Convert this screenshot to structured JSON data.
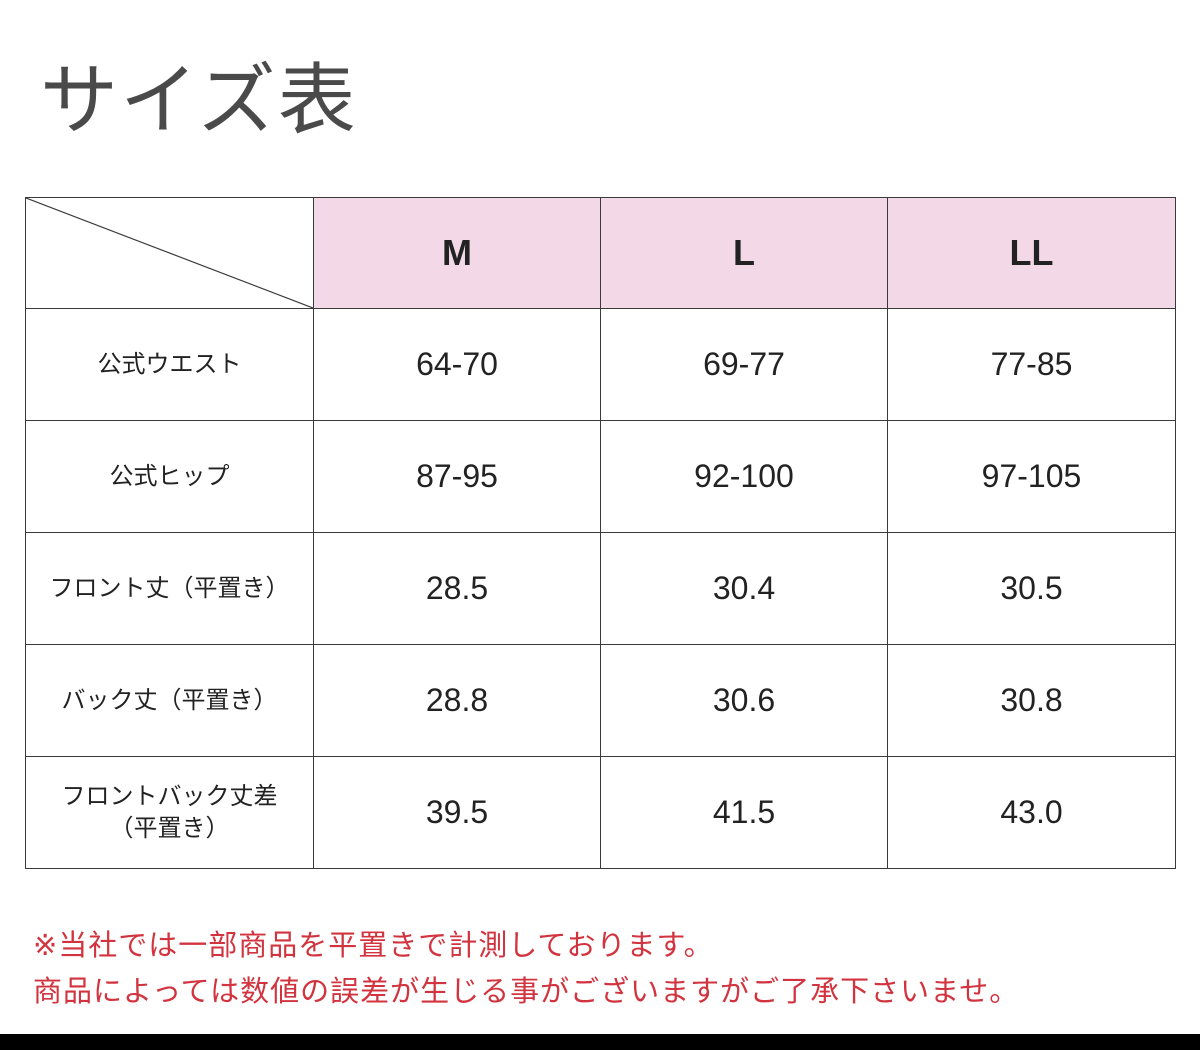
{
  "page": {
    "title": "サイズ表"
  },
  "table": {
    "sizes": [
      "M",
      "L",
      "LL"
    ],
    "rows": [
      {
        "label": [
          "公式ウエスト"
        ],
        "values": [
          "64-70",
          "69-77",
          "77-85"
        ]
      },
      {
        "label": [
          "公式ヒップ"
        ],
        "values": [
          "87-95",
          "92-100",
          "97-105"
        ]
      },
      {
        "label": [
          "フロント丈（平置き）"
        ],
        "values": [
          "28.5",
          "30.4",
          "30.5"
        ]
      },
      {
        "label": [
          "バック丈（平置き）"
        ],
        "values": [
          "28.8",
          "30.6",
          "30.8"
        ]
      },
      {
        "label": [
          "フロントバック丈差",
          "（平置き）"
        ],
        "values": [
          "39.5",
          "41.5",
          "43.0"
        ]
      }
    ]
  },
  "notes": {
    "line1": "※当社では一部商品を平置きで計測しております。",
    "line2": "商品によっては数値の誤差が生じる事がございますがご了承下さいませ。"
  },
  "colors": {
    "header_bg": "#f3d9e8",
    "note_text": "#d2343f",
    "title_text": "#4a4a4a"
  }
}
